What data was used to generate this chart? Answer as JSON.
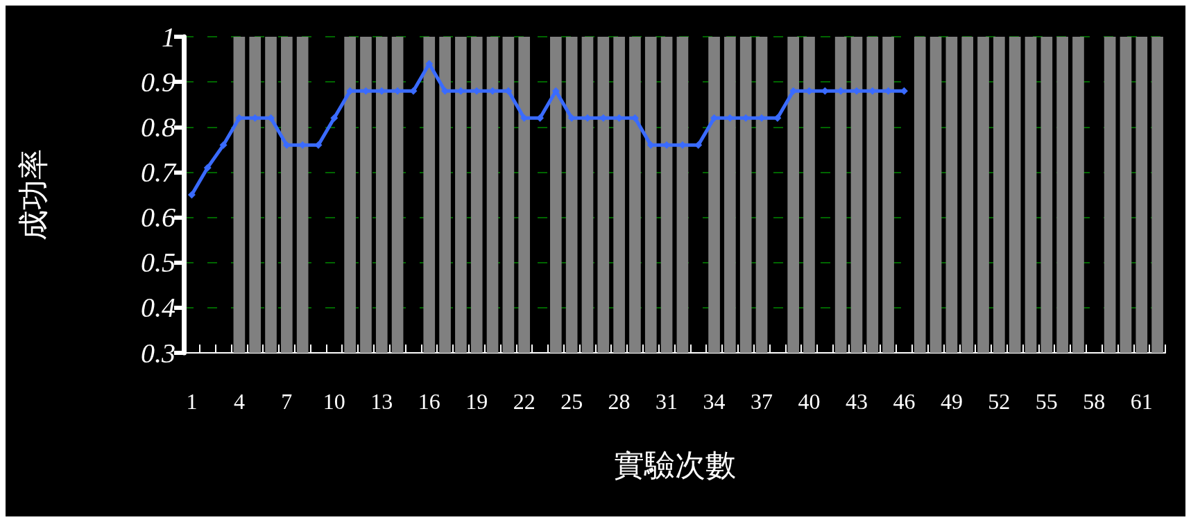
{
  "chart_data": {
    "type": "bar",
    "xlabel": "實驗次數",
    "ylabel": "成功率",
    "categories": [
      "1",
      null,
      null,
      "4",
      null,
      null,
      "7",
      null,
      null,
      "10",
      null,
      null,
      "13",
      null,
      null,
      "16",
      null,
      null,
      "19",
      null,
      null,
      "22",
      null,
      null,
      "25",
      null,
      null,
      "28",
      null,
      null,
      "31",
      null,
      null,
      "34",
      null,
      null,
      "37",
      null,
      null,
      "40",
      null,
      null,
      "43",
      null,
      null,
      "46",
      null,
      null,
      "49",
      null,
      null,
      "52",
      null,
      null,
      "55",
      null,
      null,
      "58",
      null,
      null,
      "61",
      null
    ],
    "series": [
      {
        "color": "#808080",
        "values": [
          null,
          null,
          null,
          1,
          1,
          1,
          1,
          1,
          null,
          null,
          1,
          1,
          1,
          1,
          null,
          1,
          1,
          1,
          1,
          1,
          1,
          1,
          null,
          1,
          1,
          1,
          1,
          1,
          1,
          1,
          1,
          1,
          null,
          1,
          1,
          1,
          1,
          null,
          1,
          1,
          null,
          1,
          1,
          1,
          1,
          null,
          1,
          1,
          1,
          1,
          1,
          1,
          1,
          1,
          1,
          1,
          1,
          null,
          1,
          1,
          1,
          1
        ]
      },
      {
        "type": "line",
        "color": "#3a6bff",
        "marker": "diamond",
        "line_style": "solid",
        "values": [
          0.65,
          0.71,
          0.76,
          0.82,
          0.82,
          0.82,
          0.76,
          0.76,
          0.76,
          0.82,
          0.88,
          0.88,
          0.88,
          0.88,
          0.88,
          0.94,
          0.88,
          0.88,
          0.88,
          0.88,
          0.88,
          0.82,
          0.82,
          0.88,
          0.82,
          0.82,
          0.82,
          0.82,
          0.82,
          0.76,
          0.76,
          0.76,
          0.76,
          0.82,
          0.82,
          0.82,
          0.82,
          0.82,
          0.88,
          0.88,
          0.88,
          0.88,
          0.88,
          0.88,
          0.88,
          0.88,
          null,
          null,
          null,
          null,
          null,
          null,
          null,
          null,
          null,
          null,
          null,
          null,
          null,
          null,
          null,
          null
        ]
      }
    ],
    "ylim": [
      0.3,
      1
    ],
    "yticks": [
      0.3,
      0.4,
      0.5,
      0.6,
      0.7,
      0.8,
      0.9,
      1
    ],
    "grid": "y"
  }
}
